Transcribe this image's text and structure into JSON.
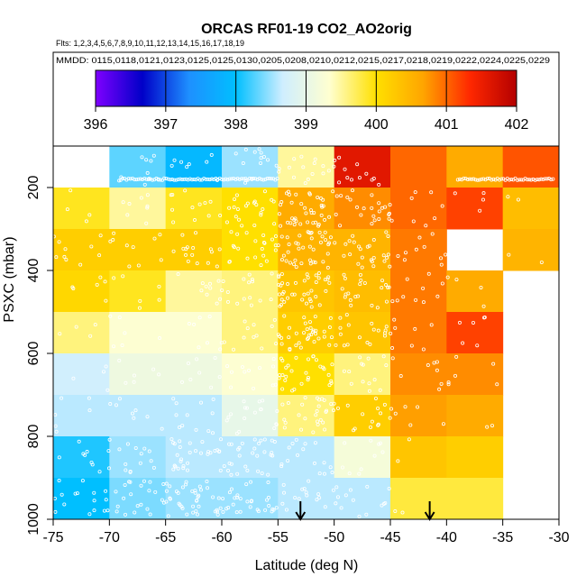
{
  "chart_data": {
    "type": "heatmap",
    "title": "ORCAS RF01-19 CO2_AO2orig",
    "flights_label": "Flts: 1,2,3,4,5,6,7,8,9,10,11,12,13,14,15,16,17,18,19",
    "dates_label": "MMDD: 0115,0118,0121,0123,0125,0125,0130,0205,0208,0210,0212,0215,0217,0218,0219,0222,0224,0225,0229",
    "xlabel": "Latitude (deg N)",
    "ylabel": "PSXC (mbar)",
    "xlim": [
      -75,
      -30
    ],
    "ylim": [
      1000,
      100
    ],
    "x_ticks": [
      -75,
      -70,
      -65,
      -60,
      -55,
      -50,
      -45,
      -40,
      -35,
      -30
    ],
    "y_ticks": [
      200,
      400,
      600,
      800,
      1000
    ],
    "colorbar": {
      "min": 396,
      "max": 402,
      "ticks": [
        396,
        397,
        398,
        399,
        400,
        401,
        402
      ],
      "colors": [
        "#7f00ff",
        "#0000c8",
        "#1e90ff",
        "#00bfff",
        "#cfeeff",
        "#ffffd0",
        "#ffe000",
        "#ffa500",
        "#ff2800",
        "#b40000"
      ]
    },
    "lat_bins": [
      -75,
      -70,
      -65,
      -60,
      -55,
      -50,
      -45,
      -40,
      -35,
      -30
    ],
    "pressure_bins": [
      100,
      200,
      300,
      400,
      500,
      600,
      700,
      800,
      900,
      1000
    ],
    "values": [
      [
        null,
        398.3,
        397.9,
        398.5,
        399.5,
        401.6,
        401.0,
        400.6,
        401.1
      ],
      [
        399.9,
        399.5,
        399.9,
        400.0,
        400.6,
        400.8,
        401.0,
        401.2,
        400.4
      ],
      [
        400.2,
        400.2,
        400.2,
        400.0,
        400.5,
        400.5,
        400.9,
        null,
        400.5
      ],
      [
        400.1,
        399.9,
        399.5,
        399.6,
        400.3,
        400.4,
        400.9,
        400.6,
        null
      ],
      [
        399.6,
        399.3,
        399.3,
        399.6,
        400.2,
        400.3,
        400.9,
        401.2,
        null
      ],
      [
        398.7,
        399.1,
        399.1,
        399.3,
        400.0,
        399.6,
        400.8,
        400.8,
        null
      ],
      [
        398.6,
        398.6,
        398.6,
        399.0,
        399.6,
        400.2,
        400.7,
        400.6,
        null
      ],
      [
        398.1,
        398.5,
        398.6,
        398.6,
        398.6,
        399.2,
        400.3,
        400.2,
        null
      ],
      [
        398.0,
        398.4,
        398.5,
        398.5,
        398.6,
        398.6,
        399.8,
        399.8,
        null
      ]
    ],
    "arrows_lat": [
      -53,
      -41.5
    ]
  }
}
